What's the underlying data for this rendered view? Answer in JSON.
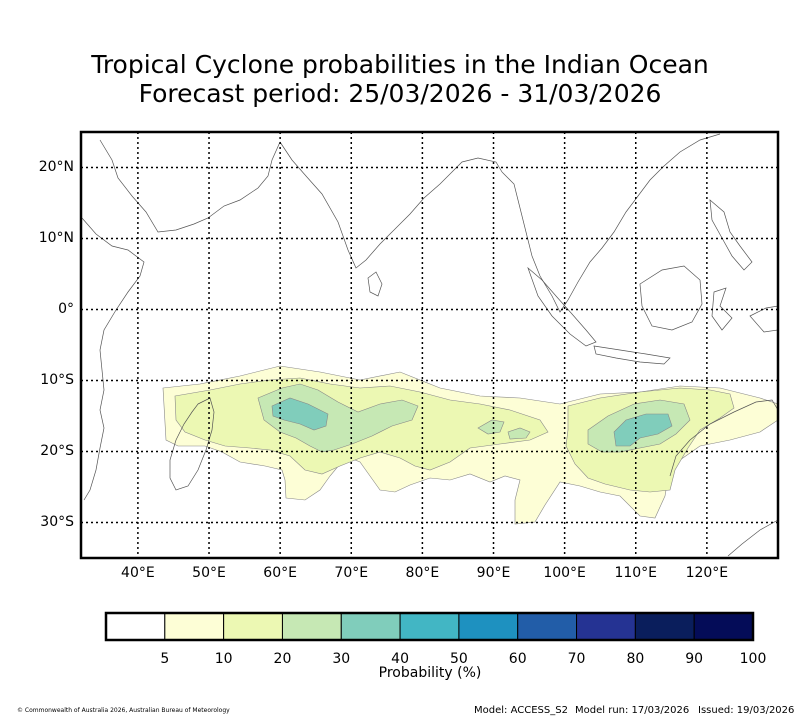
{
  "title": {
    "line1": "Tropical Cyclone probabilities in the Indian Ocean",
    "line2": "Forecast period: 25/03/2026 - 31/03/2026"
  },
  "map": {
    "lat_labels": [
      "20°N",
      "10°N",
      "0°",
      "10°S",
      "20°S",
      "30°S"
    ],
    "lon_labels": [
      "40°E",
      "50°E",
      "60°E",
      "70°E",
      "80°E",
      "90°E",
      "100°E",
      "110°E",
      "120°E"
    ],
    "extent": {
      "lon_min": 32,
      "lon_max": 130,
      "lat_min": -35,
      "lat_max": 25
    }
  },
  "colorbar": {
    "ticks": [
      "5",
      "10",
      "20",
      "30",
      "40",
      "50",
      "60",
      "70",
      "80",
      "90",
      "100"
    ],
    "colors": [
      "#ffffff",
      "#fdfed6",
      "#ecf8b3",
      "#c6e8b4",
      "#80cdbb",
      "#42b6c4",
      "#1e91c0",
      "#225da8",
      "#253393",
      "#0a1e5c",
      "#040c58"
    ],
    "label": "Probability (%)"
  },
  "probability_regions": [
    {
      "level": "5-10%",
      "color": "#fdfed6"
    },
    {
      "level": "10-20%",
      "color": "#ecf8b3"
    },
    {
      "level": "20-30%",
      "color": "#c6e8b4"
    },
    {
      "level": "30-40%",
      "color": "#80cdbb"
    }
  ],
  "footer": {
    "copyright": "© Commonwealth of Australia 2026, Australian Bureau of Meteorology",
    "model": "Model: ACCESS_S2",
    "model_run": "Model run: 17/03/2026",
    "issued": "Issued: 19/03/2026"
  }
}
